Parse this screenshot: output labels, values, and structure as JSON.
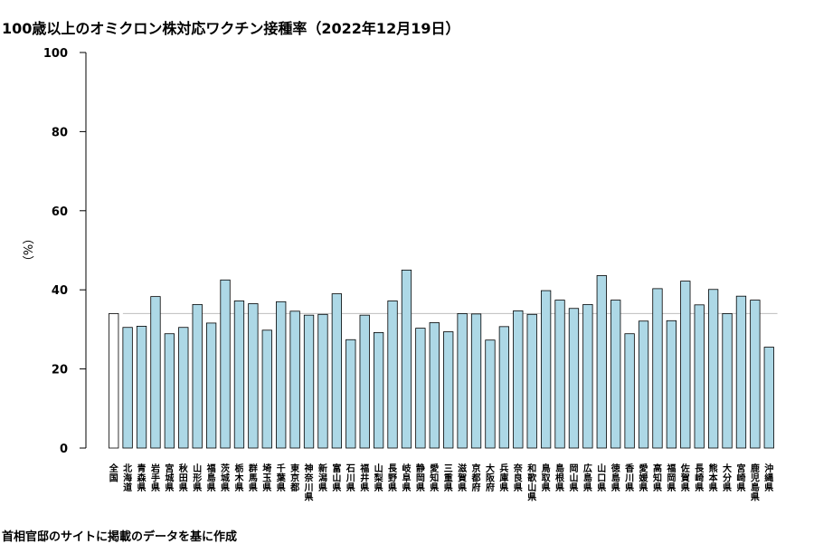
{
  "chart_data": {
    "type": "bar",
    "title": "100歳以上のオミクロン株対応ワクチン接種率（2022年12月19日）",
    "ylabel": "（%）",
    "ylim": [
      0,
      100
    ],
    "yticks": [
      0,
      20,
      40,
      60,
      80,
      100
    ],
    "categories": [
      "全国",
      "北海道",
      "青森県",
      "岩手県",
      "宮城県",
      "秋田県",
      "山形県",
      "福島県",
      "茨城県",
      "栃木県",
      "群馬県",
      "埼玉県",
      "千葉県",
      "東京都",
      "神奈川県",
      "新潟県",
      "富山県",
      "石川県",
      "福井県",
      "山梨県",
      "長野県",
      "岐阜県",
      "静岡県",
      "愛知県",
      "三重県",
      "滋賀県",
      "京都府",
      "大阪府",
      "兵庫県",
      "奈良県",
      "和歌山県",
      "鳥取県",
      "島根県",
      "岡山県",
      "広島県",
      "山口県",
      "徳島県",
      "香川県",
      "愛媛県",
      "高知県",
      "福岡県",
      "佐賀県",
      "長崎県",
      "熊本県",
      "大分県",
      "宮崎県",
      "鹿児島県",
      "沖縄県"
    ],
    "values": [
      34.0,
      30.5,
      30.8,
      38.3,
      28.9,
      30.5,
      36.3,
      31.6,
      42.5,
      37.2,
      36.5,
      29.8,
      37.0,
      34.6,
      33.6,
      33.8,
      39.0,
      27.4,
      33.6,
      29.2,
      37.2,
      45.0,
      30.3,
      31.7,
      29.4,
      34.0,
      33.9,
      27.3,
      30.7,
      34.7,
      33.8,
      39.8,
      37.4,
      35.3,
      36.3,
      43.6,
      37.4,
      28.9,
      32.1,
      40.3,
      32.2,
      42.2,
      36.2,
      40.1,
      34.0,
      38.4,
      37.4,
      25.5
    ],
    "reference_line": 34.0,
    "colors": {
      "national_bar": "#ffffff",
      "prefecture_bar": "#add8e6",
      "outline": "#000000",
      "reference_line": "#bebebe"
    },
    "grid": false,
    "legend": "none"
  },
  "source": "首相官邸のサイトに掲載のデータを基に作成"
}
